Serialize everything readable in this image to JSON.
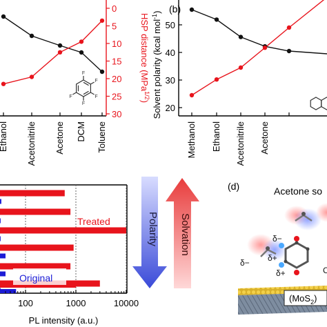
{
  "panels": {
    "b": "(b)",
    "d": "(d)"
  },
  "arrows": {
    "polarity": "Polarity",
    "solvation": "Solvation"
  },
  "molecule_labels": {
    "scene_title": "Acetone so",
    "delta_minus": "δ−",
    "delta_plus": "δ+",
    "partial_c": "C",
    "mos2_base": "(MoS",
    "mos2_sub": "2",
    "mos2_tail": ")",
    "fluorine": "F"
  },
  "colors": {
    "black_series": "#111111",
    "red_series": "#e8141c",
    "blue_series": "#1c1cd6",
    "axis": "#000000"
  },
  "chart_data": [
    {
      "id": "panel-a",
      "type": "line",
      "categories": [
        "Ethanol",
        "Acetonitrile",
        "Acetone",
        "DCM",
        "Toluene"
      ],
      "series": [
        {
          "name": "",
          "axis": "left",
          "color": "#111111",
          "values": [
            53.0,
            46.0,
            42.5,
            40.0,
            33.0
          ]
        },
        {
          "name": "",
          "axis": "right",
          "color": "#e8141c",
          "values": [
            21.5,
            19.5,
            12.5,
            9.5,
            3.5
          ]
        }
      ],
      "y_right": {
        "label": "HSP distance (MPa",
        "label_sup": "1/2",
        "label_tail": ")",
        "ticks": [
          0,
          5,
          10,
          15,
          20,
          25,
          30
        ],
        "range": [
          0,
          30
        ],
        "inverted": true
      }
    },
    {
      "id": "panel-b",
      "type": "line",
      "categories": [
        "Methanol",
        "Ethanol",
        "Acetonitrile",
        "Acetone",
        ""
      ],
      "series": [
        {
          "name": "",
          "axis": "left",
          "color": "#111111",
          "values": [
            55.5,
            51.9,
            45.6,
            42.2,
            40.5
          ]
        },
        {
          "name": "",
          "axis": "left",
          "color": "#e8141c",
          "values": [
            24.5,
            30.2,
            34.5,
            41.7,
            49.0
          ]
        }
      ],
      "y_left": {
        "label": "Solvent polarity (kcal mol",
        "label_sup": "-1",
        "label_tail": ")",
        "ticks": [
          20,
          30,
          40,
          50
        ],
        "range": [
          17,
          59
        ]
      }
    },
    {
      "id": "panel-c",
      "type": "bar",
      "orientation": "horizontal",
      "x_scale": "log",
      "x_ticks": [
        "100",
        "1000",
        "10000"
      ],
      "x_range": [
        10,
        10000
      ],
      "xlabel": "PL intensity (a.u.)",
      "series": [
        {
          "name": "Treated",
          "color": "#e8141c",
          "values": [
            600,
            780,
            10000,
            900,
            780,
            3000,
            1000
          ]
        },
        {
          "name": "Original",
          "color": "#1c1cd6",
          "values": [
            33,
            32,
            32,
            40,
            40,
            32,
            65
          ]
        }
      ]
    }
  ]
}
